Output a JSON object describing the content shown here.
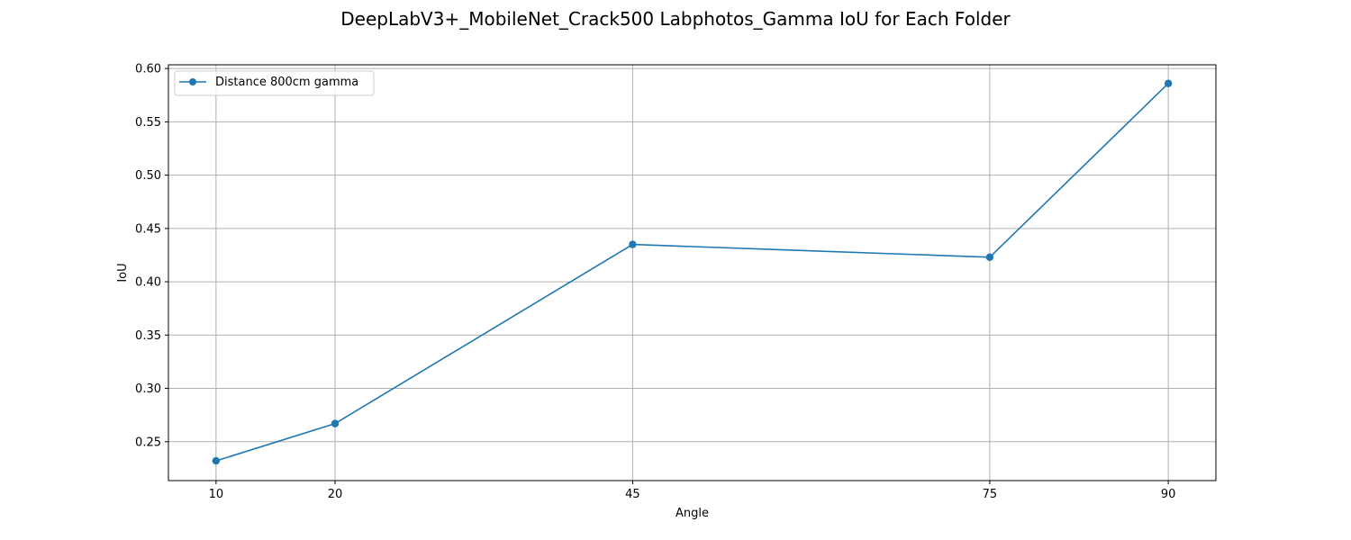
{
  "chart_data": {
    "type": "line",
    "title": "DeepLabV3+_MobileNet_Crack500 Labphotos_Gamma IoU for Each Folder",
    "xlabel": "Angle",
    "ylabel": "IoU",
    "x": [
      10,
      20,
      45,
      75,
      90
    ],
    "x_tick_labels": [
      "10",
      "20",
      "45",
      "75",
      "90"
    ],
    "y_ticks": [
      0.25,
      0.3,
      0.35,
      0.4,
      0.45,
      0.5,
      0.55,
      0.6
    ],
    "y_tick_labels": [
      "0.25",
      "0.30",
      "0.35",
      "0.40",
      "0.45",
      "0.50",
      "0.55",
      "0.60"
    ],
    "xlim": [
      6,
      94
    ],
    "ylim": [
      0.2135,
      0.6035
    ],
    "grid": true,
    "legend_position": "upper-left",
    "series": [
      {
        "name": "Distance 800cm gamma",
        "color": "#1f77b4",
        "marker": "circle",
        "values": [
          0.232,
          0.267,
          0.435,
          0.423,
          0.586
        ]
      }
    ]
  }
}
